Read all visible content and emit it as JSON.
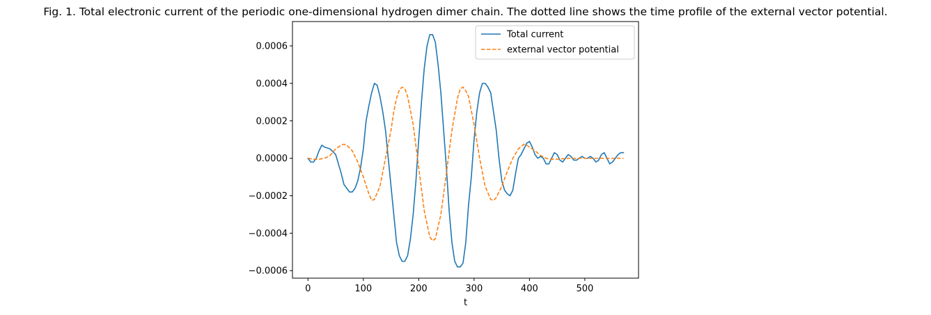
{
  "chart_data": {
    "type": "line",
    "title": "Fig. 1. Total electronic current of the periodic one-dimensional hydrogen dimer chain. The dotted line shows the time profile of the external vector potential.",
    "xlabel": "t",
    "ylabel": "",
    "xlim": [
      -28,
      597
    ],
    "ylim": [
      -0.00064,
      0.00073
    ],
    "xticks": [
      0,
      100,
      200,
      300,
      400,
      500
    ],
    "xtick_labels": [
      "0",
      "100",
      "200",
      "300",
      "400",
      "500"
    ],
    "yticks": [
      -0.0006,
      -0.0004,
      -0.0002,
      0.0,
      0.0002,
      0.0004,
      0.0006
    ],
    "ytick_labels": [
      "−0.0006",
      "−0.0004",
      "−0.0002",
      "0.0000",
      "0.0002",
      "0.0004",
      "0.0006"
    ],
    "grid": false,
    "legend_position": "top-right",
    "series": [
      {
        "name": "Total current",
        "color": "#1f77b4",
        "style": "solid",
        "points": [
          [
            0,
            0.0
          ],
          [
            5,
            -2e-05
          ],
          [
            10,
            -2e-05
          ],
          [
            15,
            0.0
          ],
          [
            20,
            4e-05
          ],
          [
            25,
            7e-05
          ],
          [
            30,
            6e-05
          ],
          [
            40,
            5e-05
          ],
          [
            50,
            2e-05
          ],
          [
            60,
            -8e-05
          ],
          [
            65,
            -0.00014
          ],
          [
            70,
            -0.00016
          ],
          [
            75,
            -0.00018
          ],
          [
            80,
            -0.00018
          ],
          [
            85,
            -0.00016
          ],
          [
            90,
            -0.00012
          ],
          [
            95,
            -5e-05
          ],
          [
            100,
            5e-05
          ],
          [
            105,
            0.0002
          ],
          [
            110,
            0.00028
          ],
          [
            115,
            0.00035
          ],
          [
            120,
            0.0004
          ],
          [
            125,
            0.00039
          ],
          [
            130,
            0.00033
          ],
          [
            135,
            0.00025
          ],
          [
            140,
            0.00015
          ],
          [
            145,
            0.0
          ],
          [
            150,
            -0.00015
          ],
          [
            155,
            -0.0003
          ],
          [
            160,
            -0.00045
          ],
          [
            165,
            -0.00052
          ],
          [
            170,
            -0.00055
          ],
          [
            175,
            -0.00055
          ],
          [
            180,
            -0.00052
          ],
          [
            185,
            -0.00043
          ],
          [
            190,
            -0.0003
          ],
          [
            195,
            -0.00012
          ],
          [
            200,
            0.0001
          ],
          [
            205,
            0.0003
          ],
          [
            210,
            0.00048
          ],
          [
            215,
            0.0006
          ],
          [
            220,
            0.00066
          ],
          [
            225,
            0.00066
          ],
          [
            230,
            0.00062
          ],
          [
            235,
            0.0005
          ],
          [
            240,
            0.00035
          ],
          [
            245,
            0.00015
          ],
          [
            250,
            -5e-05
          ],
          [
            255,
            -0.00028
          ],
          [
            260,
            -0.00045
          ],
          [
            265,
            -0.00055
          ],
          [
            270,
            -0.00058
          ],
          [
            275,
            -0.00058
          ],
          [
            280,
            -0.00056
          ],
          [
            285,
            -0.00045
          ],
          [
            290,
            -0.00025
          ],
          [
            295,
            -0.0001
          ],
          [
            300,
            0.0001
          ],
          [
            305,
            0.00025
          ],
          [
            310,
            0.00035
          ],
          [
            315,
            0.0004
          ],
          [
            320,
            0.0004
          ],
          [
            325,
            0.00038
          ],
          [
            330,
            0.00035
          ],
          [
            335,
            0.00025
          ],
          [
            340,
            0.00015
          ],
          [
            345,
            0.0
          ],
          [
            350,
            -0.00012
          ],
          [
            355,
            -0.00017
          ],
          [
            360,
            -0.00019
          ],
          [
            365,
            -0.0002
          ],
          [
            370,
            -0.00017
          ],
          [
            375,
            -8e-05
          ],
          [
            380,
            0.0
          ],
          [
            385,
            2e-05
          ],
          [
            390,
            5e-05
          ],
          [
            395,
            8e-05
          ],
          [
            400,
            9e-05
          ],
          [
            405,
            6e-05
          ],
          [
            410,
            2e-05
          ],
          [
            415,
            0.0
          ],
          [
            420,
            1e-05
          ],
          [
            425,
            0.0
          ],
          [
            430,
            -3e-05
          ],
          [
            435,
            -3e-05
          ],
          [
            440,
            0.0
          ],
          [
            445,
            3e-05
          ],
          [
            450,
            2e-05
          ],
          [
            455,
            -1e-05
          ],
          [
            460,
            -2e-05
          ],
          [
            465,
            0.0
          ],
          [
            470,
            2e-05
          ],
          [
            475,
            1e-05
          ],
          [
            480,
            -1e-05
          ],
          [
            485,
            -1e-05
          ],
          [
            490,
            0.0
          ],
          [
            495,
            1e-05
          ],
          [
            500,
            0.0
          ],
          [
            505,
            0.0
          ],
          [
            510,
            1e-05
          ],
          [
            515,
            0.0
          ],
          [
            520,
            -2e-05
          ],
          [
            525,
            -1e-05
          ],
          [
            530,
            2e-05
          ],
          [
            535,
            3e-05
          ],
          [
            540,
            0.0
          ],
          [
            545,
            -3e-05
          ],
          [
            550,
            -2e-05
          ],
          [
            555,
            0.0
          ],
          [
            560,
            2e-05
          ],
          [
            565,
            3e-05
          ],
          [
            570,
            3e-05
          ]
        ]
      },
      {
        "name": "external vector potential",
        "color": "#ff7f0e",
        "style": "dashed",
        "points": [
          [
            0,
            0.0
          ],
          [
            10,
            -5e-06
          ],
          [
            20,
            -5e-06
          ],
          [
            30,
            0.0
          ],
          [
            40,
            1.5e-05
          ],
          [
            50,
            5e-05
          ],
          [
            60,
            7e-05
          ],
          [
            65,
            7.5e-05
          ],
          [
            70,
            7e-05
          ],
          [
            80,
            4e-05
          ],
          [
            90,
            -2e-05
          ],
          [
            100,
            -0.0001
          ],
          [
            110,
            -0.00019
          ],
          [
            115,
            -0.000225
          ],
          [
            120,
            -0.00022
          ],
          [
            130,
            -0.00015
          ],
          [
            140,
            0.0
          ],
          [
            150,
            0.00015
          ],
          [
            155,
            0.00025
          ],
          [
            160,
            0.00032
          ],
          [
            165,
            0.000365
          ],
          [
            170,
            0.00038
          ],
          [
            175,
            0.00037
          ],
          [
            180,
            0.00033
          ],
          [
            190,
            0.00018
          ],
          [
            200,
            -5e-05
          ],
          [
            210,
            -0.00028
          ],
          [
            220,
            -0.00042
          ],
          [
            225,
            -0.00044
          ],
          [
            230,
            -0.00043
          ],
          [
            240,
            -0.0003
          ],
          [
            250,
            -8e-05
          ],
          [
            260,
            0.00015
          ],
          [
            270,
            0.00032
          ],
          [
            275,
            0.00037
          ],
          [
            280,
            0.00038
          ],
          [
            285,
            0.00036
          ],
          [
            290,
            0.00033
          ],
          [
            300,
            0.00018
          ],
          [
            310,
            0.0
          ],
          [
            320,
            -0.00015
          ],
          [
            330,
            -0.00022
          ],
          [
            335,
            -0.000225
          ],
          [
            340,
            -0.00021
          ],
          [
            350,
            -0.00015
          ],
          [
            360,
            -7e-05
          ],
          [
            370,
            0.0
          ],
          [
            380,
            5e-05
          ],
          [
            390,
            7.5e-05
          ],
          [
            395,
            7e-05
          ],
          [
            400,
            6e-05
          ],
          [
            410,
            4e-05
          ],
          [
            420,
            1.5e-05
          ],
          [
            430,
            0.0
          ],
          [
            440,
            -5e-06
          ],
          [
            450,
            -5e-06
          ],
          [
            470,
            0.0
          ],
          [
            500,
            0.0
          ],
          [
            530,
            0.0
          ],
          [
            570,
            0.0
          ]
        ]
      }
    ]
  }
}
